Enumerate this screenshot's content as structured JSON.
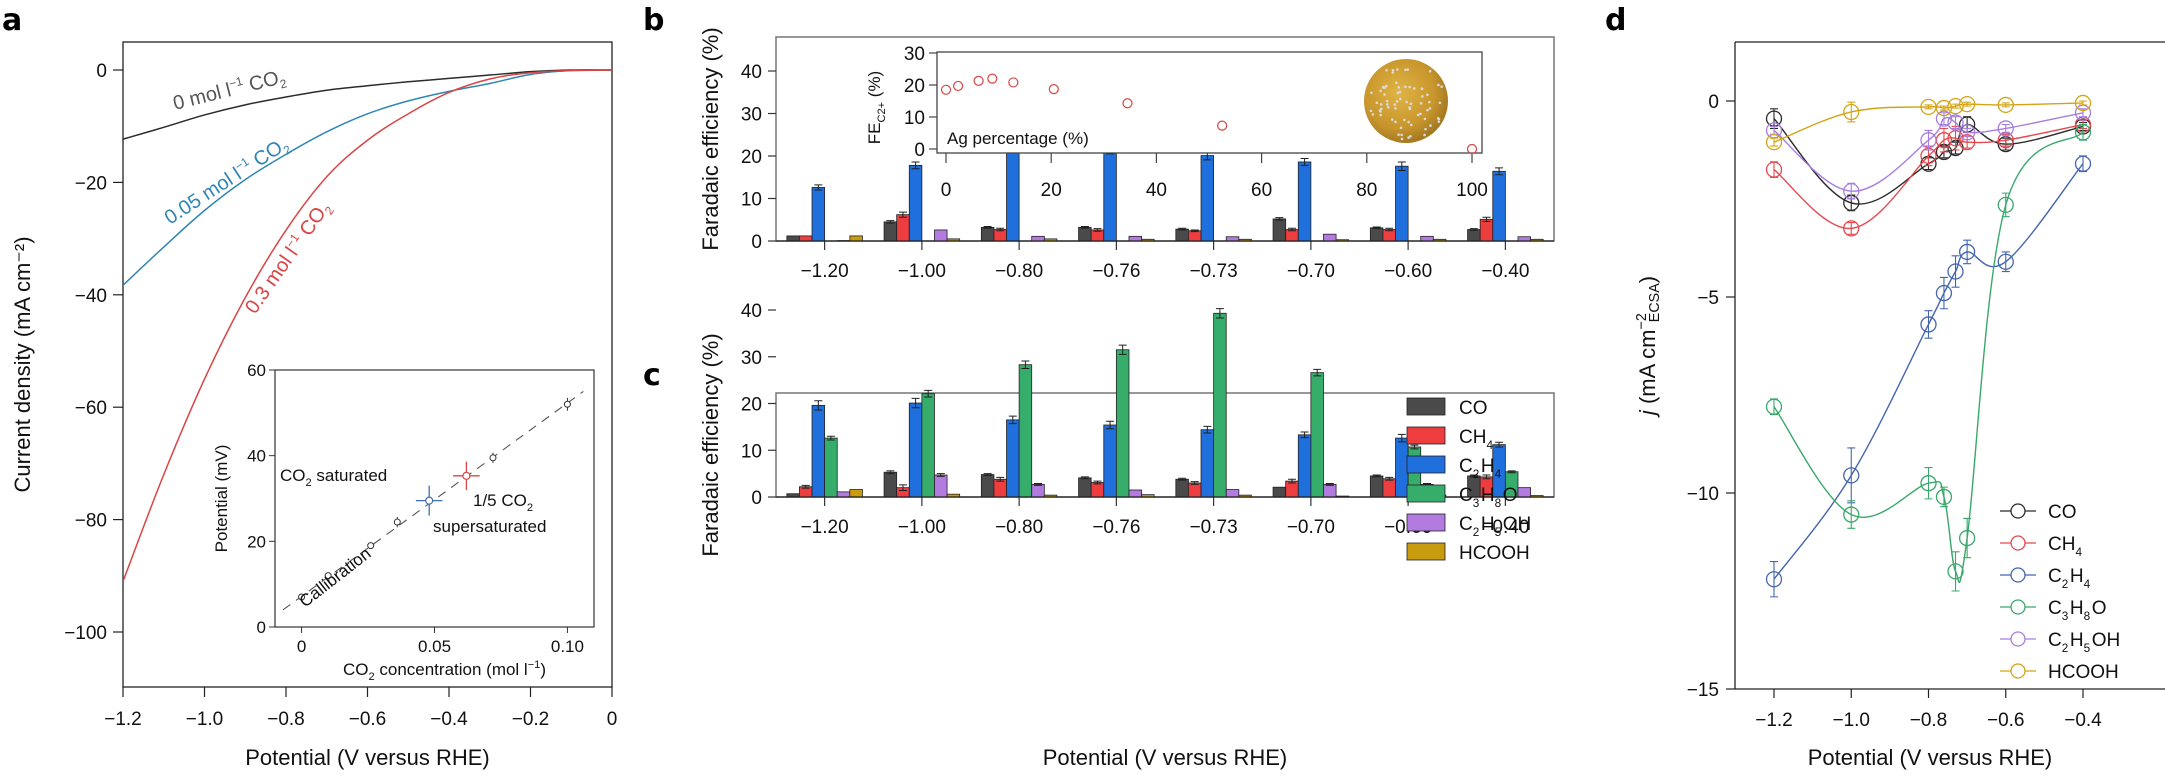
{
  "figure": {
    "panel_letters": [
      "a",
      "b",
      "c",
      "d"
    ]
  },
  "chart_data": [
    {
      "id": "a",
      "type": "line",
      "title": "",
      "xlabel": "Potential (V versus RHE)",
      "ylabel": "Current density (mA cm⁻²)",
      "xlim": [
        -1.2,
        0
      ],
      "ylim": [
        -110,
        5
      ],
      "xticks": [
        -1.2,
        -1.0,
        -0.8,
        -0.6,
        -0.4,
        -0.2,
        0
      ],
      "xtick_labels": [
        "−1.2",
        "−1.0",
        "−0.8",
        "−0.6",
        "−0.4",
        "−0.2",
        "0"
      ],
      "yticks": [
        0,
        -20,
        -40,
        -60,
        -80,
        -100
      ],
      "ytick_labels": [
        "0",
        "−20",
        "−40",
        "−60",
        "−80",
        "−100"
      ],
      "series": [
        {
          "name": "0 mol l⁻¹ CO₂",
          "color": "#2b2b2b",
          "x": [
            -1.2,
            -1.1,
            -1.0,
            -0.9,
            -0.8,
            -0.7,
            -0.6,
            -0.5,
            -0.4,
            -0.3,
            -0.2,
            -0.1,
            0
          ],
          "y": [
            -12.3,
            -10.2,
            -8.0,
            -6.2,
            -4.8,
            -3.6,
            -2.8,
            -2.1,
            -1.5,
            -0.9,
            -0.3,
            0,
            0
          ]
        },
        {
          "name": "0.05 mol l⁻¹ CO₂",
          "color": "#2f86b3",
          "x": [
            -1.2,
            -1.1,
            -1.0,
            -0.9,
            -0.8,
            -0.7,
            -0.6,
            -0.5,
            -0.4,
            -0.3,
            -0.2,
            -0.1,
            0
          ],
          "y": [
            -38.3,
            -31.5,
            -25.0,
            -19.5,
            -15.0,
            -11.0,
            -7.8,
            -5.5,
            -3.8,
            -2.4,
            -0.8,
            -0.1,
            0
          ]
        },
        {
          "name": "0.3 mol l⁻¹ CO₂",
          "color": "#d94545",
          "x": [
            -1.2,
            -1.1,
            -1.0,
            -0.9,
            -0.8,
            -0.7,
            -0.6,
            -0.5,
            -0.4,
            -0.3,
            -0.2,
            -0.1,
            0
          ],
          "y": [
            -91.0,
            -72.0,
            -55.0,
            -40.5,
            -28.5,
            -19.0,
            -12.5,
            -7.8,
            -4.0,
            -1.6,
            -0.5,
            -0.1,
            0
          ]
        }
      ],
      "annotations": [
        {
          "text_main": "0 mol l",
          "sup": "−1",
          "text_tail": " CO",
          "sub": "2",
          "color": "#555555"
        },
        {
          "text_main": "0.05 mol l",
          "sup": "−1",
          "text_tail": " CO",
          "sub": "2",
          "color": "#2f86b3"
        },
        {
          "text_main": "0.3 mol l",
          "sup": "−1",
          "text_tail": " CO",
          "sub": "2",
          "color": "#d94545"
        }
      ],
      "inset": {
        "type": "scatter",
        "xlabel_main": "CO",
        "xlabel_sub": "2",
        "xlabel_tail": " concentration (mol l",
        "xlabel_sup": "−1",
        "xlabel_end": ")",
        "ylabel": "Potential (mV)",
        "xlim": [
          -0.01,
          0.11
        ],
        "ylim": [
          0,
          60
        ],
        "xticks": [
          0,
          0.05,
          0.1
        ],
        "xtick_labels": [
          "0",
          "0.05",
          "0.10"
        ],
        "yticks": [
          0,
          20,
          40,
          60
        ],
        "ytick_labels": [
          "0",
          "20",
          "40",
          "60"
        ],
        "calibration_points": {
          "x": [
            0,
            0.01,
            0.026,
            0.036,
            0.072,
            0.1
          ],
          "y": [
            7,
            12,
            19,
            24.5,
            39.5,
            52
          ],
          "err": [
            0.5,
            0.7,
            0.7,
            1.2,
            1.2,
            1.5
          ]
        },
        "calibration_line": {
          "x": [
            -0.007,
            0.106
          ],
          "y": [
            4,
            55
          ]
        },
        "calibration_label": "Callibration",
        "co2_saturated": {
          "x": 0.048,
          "y": 29.5,
          "xerr": 0.005,
          "yerr": 3.5,
          "label_main": "CO",
          "label_sub": "2",
          "label_tail": " saturated",
          "color": "#3f6fb0"
        },
        "supersaturated": {
          "x": 0.062,
          "y": 35.3,
          "xerr": 0.005,
          "yerr": 3.3,
          "label_line1_main": "1/5 CO",
          "label_line1_sub": "2",
          "label_line2": "supersaturated",
          "color": "#d94545"
        }
      }
    },
    {
      "id": "b",
      "type": "bar",
      "xlabel": "",
      "ylabel": "Faradaic efficiency (%)",
      "ylim": [
        0,
        45
      ],
      "yticks": [
        0,
        10,
        20,
        30,
        40
      ],
      "categories": [
        "−1.20",
        "−1.00",
        "−0.80",
        "−0.76",
        "−0.73",
        "−0.70",
        "−0.60",
        "−0.40"
      ],
      "series": [
        {
          "name": "CO",
          "color": "#4a4a4a",
          "values": [
            1.2,
            4.5,
            3.2,
            3.2,
            2.8,
            5.2,
            3.1,
            2.7
          ],
          "err": [
            0.1,
            0.3,
            0.2,
            0.2,
            0.2,
            0.3,
            0.2,
            0.2
          ]
        },
        {
          "name": "CH4",
          "color": "#ee3d3f",
          "values": [
            1.2,
            6.2,
            2.7,
            2.6,
            2.4,
            2.7,
            2.7,
            5.1
          ],
          "err": [
            0.1,
            0.6,
            0.3,
            0.3,
            0.2,
            0.3,
            0.3,
            0.5
          ]
        },
        {
          "name": "C2H4",
          "color": "#1f6fdc",
          "values": [
            12.6,
            17.8,
            22.2,
            21.5,
            20.1,
            18.6,
            17.6,
            16.4
          ],
          "err": [
            0.6,
            0.8,
            1.0,
            1.0,
            1.0,
            0.8,
            1.0,
            0.8
          ]
        },
        {
          "name": "C3H8O",
          "color": "#37ad6b",
          "values": [
            0,
            0,
            0,
            0,
            0,
            0,
            0,
            0
          ],
          "err": [
            0,
            0,
            0,
            0,
            0,
            0,
            0,
            0
          ]
        },
        {
          "name": "C2H5OH",
          "color": "#b37be0",
          "values": [
            0.1,
            2.6,
            1.1,
            1.1,
            1.0,
            1.6,
            1.1,
            1.0
          ],
          "err": [
            0,
            0.1,
            0.1,
            0.1,
            0.1,
            0.1,
            0.1,
            0.1
          ]
        },
        {
          "name": "HCOOH",
          "color": "#c99b0e",
          "values": [
            1.2,
            0.5,
            0.5,
            0.4,
            0.4,
            0.3,
            0.4,
            0.4
          ],
          "err": [
            0.1,
            0.05,
            0.05,
            0.05,
            0.05,
            0.05,
            0.05,
            0.05
          ]
        }
      ],
      "inset": {
        "type": "scatter",
        "ylabel_main": "FE",
        "ylabel_sub": "C2+",
        "ylabel_tail": " (%)",
        "xlabel": "Ag percentage (%)",
        "xlim": [
          -2,
          102
        ],
        "ylim": [
          0,
          30
        ],
        "xticks": [
          0,
          20,
          40,
          60,
          80,
          100
        ],
        "xtick_labels": [
          "0",
          "20",
          "40",
          "60",
          "80",
          "100"
        ],
        "yticks": [
          0,
          10,
          20,
          30
        ],
        "ytick_labels": [
          "0",
          "10",
          "20",
          "30"
        ],
        "x": [
          0,
          2.3,
          6.2,
          8.8,
          12.8,
          20.5,
          34.5,
          52.5,
          100
        ],
        "y": [
          18.5,
          19.7,
          21.3,
          22.0,
          20.8,
          18.7,
          14.3,
          7.3,
          0
        ],
        "color": "#d94545",
        "image": "nanoparticle-sphere"
      }
    },
    {
      "id": "c",
      "type": "bar",
      "xlabel": "Potential (V versus RHE)",
      "ylabel": "Faradaic efficiency (%)",
      "ylim": [
        0,
        45
      ],
      "yticks": [
        0,
        10,
        20,
        30,
        40
      ],
      "categories": [
        "−1.20",
        "−1.00",
        "−0.80",
        "−0.76",
        "−0.73",
        "−0.70",
        "−0.60",
        "−0.40"
      ],
      "legend": {
        "placement": "top-right",
        "entries": [
          {
            "main": "CO",
            "parts": [
              [
                "CO",
                ""
              ]
            ]
          },
          {
            "main": "CH4",
            "parts": [
              [
                "CH",
                "4"
              ]
            ]
          },
          {
            "main": "C2H4",
            "parts": [
              [
                "C",
                "2"
              ],
              [
                "H",
                "4"
              ]
            ]
          },
          {
            "main": "C3H8O",
            "parts": [
              [
                "C",
                "3"
              ],
              [
                "H",
                "8"
              ],
              [
                "O",
                ""
              ]
            ]
          },
          {
            "main": "C2H5OH",
            "parts": [
              [
                "C",
                "2"
              ],
              [
                "H",
                "5"
              ],
              [
                "OH",
                ""
              ]
            ]
          },
          {
            "main": "HCOOH",
            "parts": [
              [
                "HCOOH",
                ""
              ]
            ]
          }
        ]
      },
      "series": [
        {
          "name": "CO",
          "color": "#4a4a4a",
          "values": [
            0.7,
            5.3,
            4.8,
            4.1,
            3.8,
            2.1,
            4.5,
            4.5
          ],
          "err": [
            0.05,
            0.3,
            0.2,
            0.2,
            0.2,
            0.1,
            0.2,
            0.2
          ]
        },
        {
          "name": "CH4",
          "color": "#ee3d3f",
          "values": [
            2.2,
            2.0,
            3.8,
            3.1,
            3.0,
            3.4,
            3.9,
            4.3
          ],
          "err": [
            0.3,
            0.6,
            0.4,
            0.3,
            0.3,
            0.4,
            0.3,
            0.4
          ]
        },
        {
          "name": "C2H4",
          "color": "#1f6fdc",
          "values": [
            19.6,
            20.1,
            16.5,
            15.4,
            14.4,
            13.3,
            12.6,
            11.2
          ],
          "err": [
            1.0,
            1.0,
            0.8,
            0.8,
            0.7,
            0.6,
            0.8,
            0.5
          ]
        },
        {
          "name": "C3H8O",
          "color": "#37ad6b",
          "values": [
            12.6,
            22.1,
            28.3,
            31.5,
            39.3,
            26.6,
            10.7,
            5.4
          ],
          "err": [
            0.4,
            0.7,
            0.8,
            1.0,
            1.0,
            0.7,
            0.4,
            0.2
          ]
        },
        {
          "name": "C2H5OH",
          "color": "#b37be0",
          "values": [
            1.1,
            4.7,
            2.7,
            1.5,
            1.6,
            2.7,
            2.7,
            2.0
          ],
          "err": [
            0.05,
            0.3,
            0.2,
            0.1,
            0.1,
            0.2,
            0.2,
            0.1
          ]
        },
        {
          "name": "HCOOH",
          "color": "#c99b0e",
          "values": [
            1.6,
            0.6,
            0.4,
            0.5,
            0.4,
            0.2,
            0.4,
            0.3
          ],
          "err": [
            0.1,
            0.05,
            0.05,
            0.05,
            0.05,
            0.05,
            0.05,
            0.05
          ]
        }
      ]
    },
    {
      "id": "d",
      "type": "line",
      "xlabel": "Potential (V versus RHE)",
      "ylabel_main": "j",
      "ylabel_tail": " (mA cm",
      "ylabel_sup": "−2",
      "ylabel_sub": "ECSA",
      "ylabel_end": ")",
      "xlim": [
        -1.3,
        -0.35
      ],
      "ylim": [
        -15,
        1.5
      ],
      "xticks": [
        -1.2,
        -1.0,
        -0.8,
        -0.6,
        -0.4
      ],
      "xtick_labels": [
        "−1.2",
        "−1.0",
        "−0.8",
        "−0.6",
        "−0.4"
      ],
      "yticks": [
        0,
        -5,
        -10,
        -15
      ],
      "ytick_labels": [
        "0",
        "−5",
        "−10",
        "−15"
      ],
      "x": [
        -1.2,
        -1.0,
        -0.8,
        -0.76,
        -0.73,
        -0.7,
        -0.6,
        -0.4
      ],
      "legend": {
        "placement": "bottom-right",
        "entries": [
          {
            "parts": [
              [
                "CO",
                ""
              ]
            ]
          },
          {
            "parts": [
              [
                "CH",
                "4"
              ]
            ]
          },
          {
            "parts": [
              [
                "C",
                "2"
              ],
              [
                "H",
                "4"
              ]
            ]
          },
          {
            "parts": [
              [
                "C",
                "3"
              ],
              [
                "H",
                "8"
              ],
              [
                "O",
                ""
              ]
            ]
          },
          {
            "parts": [
              [
                "C",
                "2"
              ],
              [
                "H",
                "5"
              ],
              [
                "OH",
                ""
              ]
            ]
          },
          {
            "parts": [
              [
                "HCOOH",
                ""
              ]
            ]
          }
        ]
      },
      "series": [
        {
          "name": "CO",
          "color": "#2b2b2b",
          "y": [
            -0.45,
            -2.6,
            -1.6,
            -1.3,
            -1.2,
            -0.6,
            -1.1,
            -0.65
          ],
          "err": [
            0.25,
            0.2,
            0.15,
            0.15,
            0.15,
            0.2,
            0.15,
            0.1
          ]
        },
        {
          "name": "CH4",
          "color": "#e5484d",
          "y": [
            -1.75,
            -3.25,
            -1.4,
            -1.0,
            -0.95,
            -1.05,
            -1.0,
            -0.6
          ],
          "err": [
            0.2,
            0.15,
            0.25,
            0.3,
            0.3,
            0.15,
            0.15,
            0.1
          ]
        },
        {
          "name": "C2H4",
          "color": "#4466b0",
          "y": [
            -12.2,
            -9.55,
            -5.7,
            -4.9,
            -4.35,
            -3.85,
            -4.1,
            -1.6
          ],
          "err": [
            0.45,
            0.7,
            0.35,
            0.4,
            0.4,
            0.3,
            0.25,
            0.2
          ]
        },
        {
          "name": "C3H8O",
          "color": "#3aa86b",
          "y": [
            -7.8,
            -10.55,
            -9.75,
            -10.1,
            -12.0,
            -11.15,
            -2.65,
            -0.8
          ],
          "err": [
            0.2,
            0.35,
            0.4,
            0.25,
            0.5,
            0.5,
            0.3,
            0.2
          ]
        },
        {
          "name": "C2H5OH",
          "color": "#a77ee0",
          "y": [
            -0.75,
            -2.3,
            -1.0,
            -0.45,
            -0.55,
            -0.8,
            -0.7,
            -0.3
          ],
          "err": [
            0.1,
            0.2,
            0.25,
            0.15,
            0.15,
            0.1,
            0.1,
            0.1
          ]
        },
        {
          "name": "HCOOH",
          "color": "#d3a416",
          "y": [
            -1.05,
            -0.28,
            -0.15,
            -0.18,
            -0.13,
            -0.08,
            -0.1,
            -0.05
          ],
          "err": [
            0.1,
            0.25,
            0.05,
            0.05,
            0.05,
            0.05,
            0.05,
            0.05
          ]
        }
      ]
    }
  ]
}
